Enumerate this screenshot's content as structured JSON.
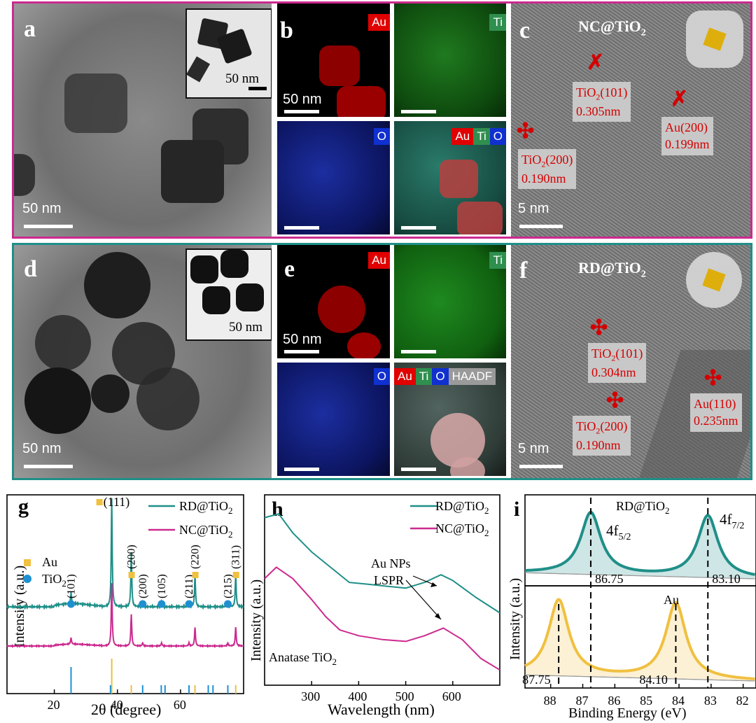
{
  "colors": {
    "teal": "#1f8f88",
    "magenta": "#cc2a8f",
    "gold": "#f0c040",
    "blue": "#1e90d0",
    "red_label": "#d40000"
  },
  "top_row": {
    "a": {
      "letter": "a",
      "scale": "50 nm",
      "inset_scale": "50 nm"
    },
    "b": {
      "letter": "b",
      "scale": "50 nm",
      "maps": [
        "Au",
        "Ti",
        "O"
      ],
      "overlay_tags": [
        "Au",
        "Ti",
        "O"
      ]
    },
    "c": {
      "letter": "c",
      "title": "NC@TiO",
      "title_sub": "2",
      "scale": "5 nm",
      "labels": [
        {
          "main": "TiO",
          "sub": "2",
          "hkl": "(101)",
          "d": "0.305nm"
        },
        {
          "main": "Au(200)",
          "sub": "",
          "hkl": "",
          "d": "0.199nm"
        },
        {
          "main": "TiO",
          "sub": "2",
          "hkl": "(200)",
          "d": "0.190nm"
        }
      ]
    }
  },
  "middle_row": {
    "d": {
      "letter": "d",
      "scale": "50 nm",
      "inset_scale": "50 nm"
    },
    "e": {
      "letter": "e",
      "scale": "50 nm",
      "maps": [
        "Au",
        "Ti",
        "O"
      ],
      "overlay_tags": [
        "Au",
        "Ti",
        "O",
        "HAADF"
      ]
    },
    "f": {
      "letter": "f",
      "title": "RD@TiO",
      "title_sub": "2",
      "scale": "5 nm",
      "labels": [
        {
          "main": "TiO",
          "sub": "2",
          "hkl": "(101)",
          "d": "0.304nm"
        },
        {
          "main": "TiO",
          "sub": "2",
          "hkl": "(200)",
          "d": "0.190nm"
        },
        {
          "main": "Au(110)",
          "sub": "",
          "hkl": "",
          "d": "0.235nm"
        }
      ]
    }
  },
  "chart_data": [
    {
      "panel": "g",
      "type": "line",
      "xlabel": "2θ (degree)",
      "ylabel": "Intensity (a.u.)",
      "xlim": [
        5,
        80
      ],
      "xticks": [
        20,
        40,
        60
      ],
      "series": [
        {
          "name": "RD@TiO2",
          "label_main": "RD@TiO",
          "label_sub": "2",
          "color": "#1f8f88"
        },
        {
          "name": "NC@TiO2",
          "label_main": "NC@TiO",
          "label_sub": "2",
          "color": "#cc2a8f"
        }
      ],
      "markers": [
        {
          "label": "Au",
          "color": "#f0c040"
        },
        {
          "label": "TiO",
          "sub": "2",
          "color": "#1e90d0"
        }
      ],
      "peaks": [
        {
          "x": 25.3,
          "label": "(101)",
          "phase": "TiO2",
          "height": 0.1
        },
        {
          "x": 38.2,
          "label": "(111)",
          "phase": "Au",
          "height": 1.0
        },
        {
          "x": 44.4,
          "label": "(200)",
          "phase": "Au",
          "height": 0.5
        },
        {
          "x": 48.0,
          "label": "(200)",
          "phase": "TiO2",
          "height": 0.05
        },
        {
          "x": 54.0,
          "label": "(105)",
          "phase": "TiO2",
          "height": 0.05
        },
        {
          "x": 62.7,
          "label": "(211)",
          "phase": "TiO2",
          "height": 0.05
        },
        {
          "x": 64.6,
          "label": "(220)",
          "phase": "Au",
          "height": 0.3
        },
        {
          "x": 75.0,
          "label": "(215)",
          "phase": "TiO2",
          "height": 0.05
        },
        {
          "x": 77.5,
          "label": "(311)",
          "phase": "Au",
          "height": 0.3
        }
      ],
      "reference_au": [
        38.2,
        44.4,
        64.6,
        77.5,
        81.7
      ],
      "reference_tio2": [
        25.3,
        37.8,
        48.0,
        53.9,
        55.1,
        62.7,
        68.8,
        70.3,
        75.0
      ]
    },
    {
      "panel": "h",
      "type": "line",
      "xlabel": "Wavelength (nm)",
      "ylabel": "Intensity (a.u.)",
      "xlim": [
        200,
        700
      ],
      "xticks": [
        300,
        400,
        500,
        600
      ],
      "series": [
        {
          "name": "RD@TiO2",
          "label_main": "RD@TiO",
          "label_sub": "2",
          "color": "#1f8f88",
          "points": [
            [
              200,
              0.78
            ],
            [
              230,
              0.8
            ],
            [
              260,
              0.7
            ],
            [
              300,
              0.6
            ],
            [
              340,
              0.52
            ],
            [
              380,
              0.44
            ],
            [
              420,
              0.43
            ],
            [
              460,
              0.42
            ],
            [
              500,
              0.41
            ],
            [
              540,
              0.44
            ],
            [
              575,
              0.48
            ],
            [
              600,
              0.45
            ],
            [
              650,
              0.36
            ],
            [
              700,
              0.28
            ]
          ]
        },
        {
          "name": "NC@TiO2",
          "label_main": "NC@TiO",
          "label_sub": "2",
          "color": "#cc2a8f",
          "points": [
            [
              200,
              0.46
            ],
            [
              225,
              0.52
            ],
            [
              260,
              0.46
            ],
            [
              300,
              0.35
            ],
            [
              330,
              0.26
            ],
            [
              360,
              0.19
            ],
            [
              400,
              0.16
            ],
            [
              450,
              0.14
            ],
            [
              500,
              0.13
            ],
            [
              540,
              0.16
            ],
            [
              580,
              0.2
            ],
            [
              620,
              0.14
            ],
            [
              660,
              0.04
            ],
            [
              700,
              -0.02
            ]
          ]
        }
      ],
      "annotations": {
        "lspr": [
          "Au NPs",
          "LSPR"
        ],
        "anatase_main": "Anatase TiO",
        "anatase_sub": "2"
      }
    },
    {
      "panel": "i",
      "type": "line",
      "xlabel": "Binding Energy (eV)",
      "ylabel": "Intensity (a.u.)",
      "xlim": [
        88.8,
        81.6
      ],
      "xticks": [
        88,
        87,
        86,
        85,
        84,
        83,
        82
      ],
      "top": {
        "title_main": "RD@TiO",
        "title_sub": "2",
        "color": "#1f8f88",
        "peaks": [
          86.75,
          83.1
        ],
        "peak_labels": [
          "86.75",
          "83.10"
        ],
        "orbital_labels": [
          {
            "main": "4f",
            "sub": "5/2"
          },
          {
            "main": "4f",
            "sub": "7/2"
          }
        ]
      },
      "bottom": {
        "title": "Au",
        "color": "#f0c040",
        "peaks": [
          87.75,
          84.1
        ],
        "peak_labels": [
          "87.75",
          "84.10"
        ]
      }
    }
  ]
}
